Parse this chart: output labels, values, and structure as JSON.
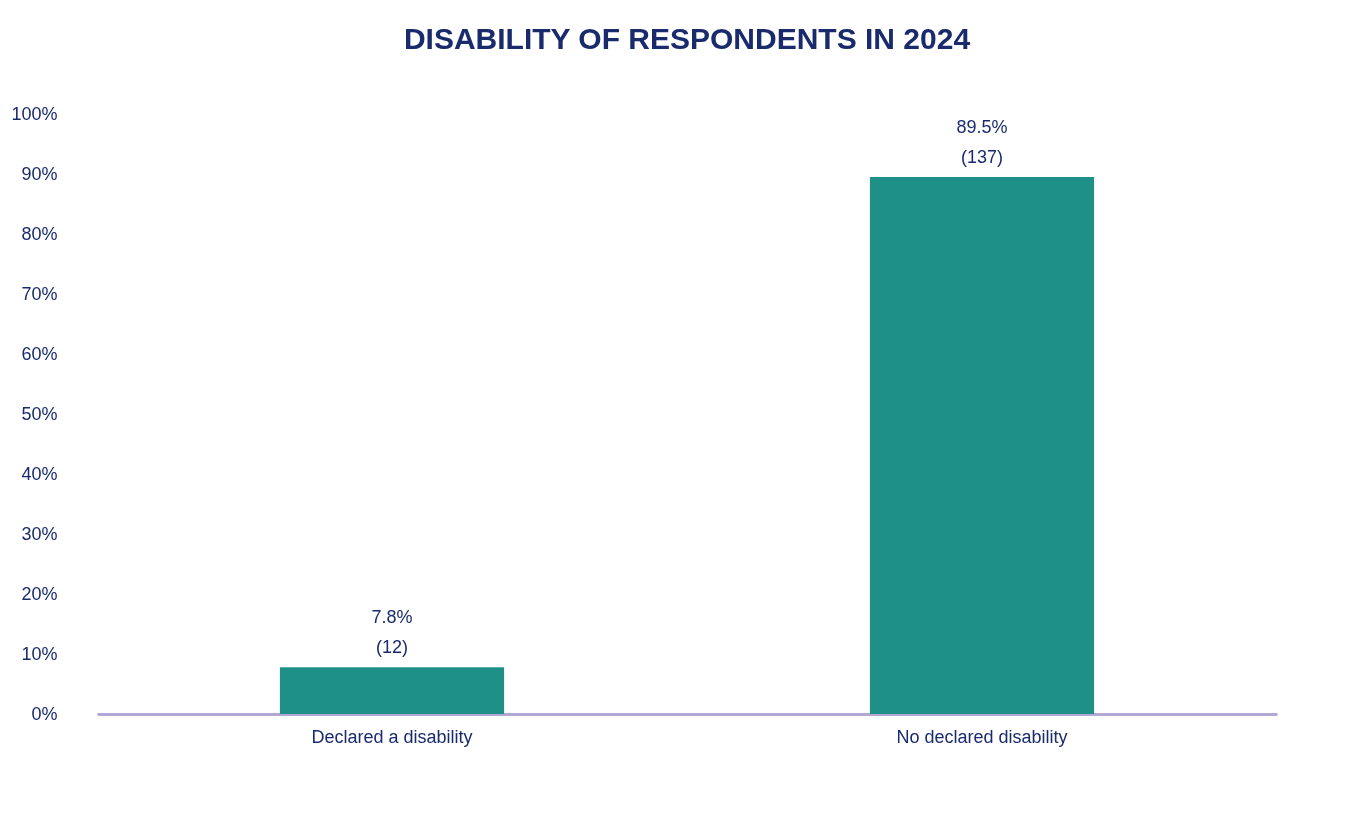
{
  "chart_data": {
    "type": "bar",
    "title": "DISABILITY OF RESPONDENTS IN 2024",
    "categories": [
      "Declared a disability",
      "No declared disability"
    ],
    "values": [
      7.8,
      89.5
    ],
    "value_labels": [
      "7.8%\n(12)",
      "89.5%\n(137)"
    ],
    "color": "#1f9088",
    "ylim": [
      0,
      100
    ],
    "yticks": [
      {
        "value": 0,
        "label": "0%"
      },
      {
        "value": 10,
        "label": "10%"
      },
      {
        "value": 20,
        "label": "20%"
      },
      {
        "value": 30,
        "label": "30%"
      },
      {
        "value": 40,
        "label": "40%"
      },
      {
        "value": 50,
        "label": "50%"
      },
      {
        "value": 60,
        "label": "60%"
      },
      {
        "value": 70,
        "label": "70%"
      },
      {
        "value": 80,
        "label": "80%"
      },
      {
        "value": 90,
        "label": "90%"
      },
      {
        "value": 100,
        "label": "100%"
      }
    ],
    "grid": false
  }
}
